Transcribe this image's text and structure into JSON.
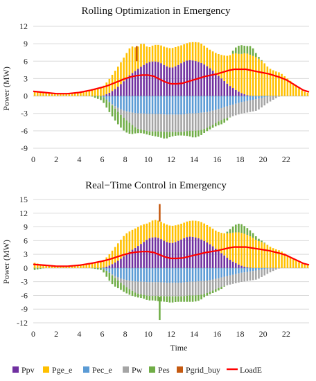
{
  "colors": {
    "Ppv": "#7030a0",
    "Pge_e": "#ffc000",
    "Pec_e": "#5b9bd5",
    "Pw": "#a5a5a5",
    "Pes": "#70ad47",
    "Pgrid_buy": "#c55a11",
    "LoadE": "#ff0000"
  },
  "legend": [
    {
      "key": "Ppv",
      "label": "Ppv",
      "kind": "box"
    },
    {
      "key": "Pge_e",
      "label": "Pge_e",
      "kind": "box"
    },
    {
      "key": "Pec_e",
      "label": "Pec_e",
      "kind": "box"
    },
    {
      "key": "Pw",
      "label": "Pw",
      "kind": "box"
    },
    {
      "key": "Pes",
      "label": "Pes",
      "kind": "box"
    },
    {
      "key": "Pgrid_buy",
      "label": "Pgrid_buy",
      "kind": "box"
    },
    {
      "key": "LoadE",
      "label": "LoadE",
      "kind": "line"
    }
  ],
  "chart_data": [
    {
      "type": "bar",
      "title": "Rolling Optimization in Emergency",
      "xlabel": "",
      "ylabel": "Power (MW)",
      "ylim": [
        -9,
        12
      ],
      "yticks": [
        -9,
        -6,
        -3,
        0,
        3,
        6,
        9,
        12
      ],
      "xlim": [
        0,
        24
      ],
      "xticks": [
        0,
        2,
        4,
        6,
        8,
        10,
        12,
        14,
        16,
        18,
        20,
        22
      ],
      "grid": true,
      "stacked": true,
      "step_hours": 0.25,
      "time_samples": [
        0,
        1,
        2,
        3,
        4,
        5,
        6,
        6.5,
        7,
        7.5,
        8,
        8.5,
        9,
        9.5,
        10,
        10.5,
        11,
        11.5,
        12,
        12.5,
        13,
        13.5,
        14,
        14.5,
        15,
        15.5,
        16,
        16.5,
        17,
        17.5,
        18,
        18.5,
        19,
        19.5,
        20,
        20.5,
        21,
        21.5,
        22,
        22.5,
        23,
        23.5,
        24
      ],
      "series": [
        {
          "name": "Ppv",
          "values": [
            0,
            0,
            0,
            0,
            0,
            0,
            0,
            0.4,
            1.0,
            1.8,
            2.8,
            3.8,
            4.5,
            5.2,
            5.8,
            6.0,
            5.8,
            5.2,
            4.8,
            5.2,
            5.8,
            6.2,
            6.1,
            5.8,
            5.3,
            4.6,
            3.7,
            2.8,
            1.9,
            1.2,
            0.6,
            0.2,
            0,
            0,
            0,
            0,
            0,
            0,
            0,
            0,
            0,
            0,
            0
          ]
        },
        {
          "name": "Pge_e",
          "values": [
            0.8,
            0.6,
            0.4,
            0.4,
            0.6,
            1.0,
            1.5,
            2.2,
            3.0,
            3.6,
            4.2,
            4.8,
            3.8,
            4.0,
            2.5,
            2.8,
            3.0,
            3.2,
            3.4,
            3.3,
            3.0,
            3.0,
            3.2,
            3.4,
            3.2,
            3.2,
            3.6,
            4.2,
            5.0,
            6.2,
            6.6,
            7.2,
            7.0,
            6.6,
            5.9,
            4.8,
            4.3,
            4.0,
            3.2,
            2.4,
            1.5,
            0.8,
            0.5
          ]
        },
        {
          "name": "Pec_e",
          "values": [
            0,
            0,
            0,
            0,
            0,
            0,
            0,
            -0.8,
            -1.6,
            -2.2,
            -2.6,
            -2.8,
            -3.0,
            -3.0,
            -3.1,
            -3.1,
            -3.1,
            -3.2,
            -3.2,
            -3.2,
            -3.2,
            -3.0,
            -3.0,
            -2.9,
            -2.8,
            -2.6,
            -2.3,
            -2.0,
            -1.7,
            -1.4,
            -1.1,
            -0.9,
            -0.7,
            -0.5,
            -0.3,
            -0.1,
            0,
            0,
            0,
            0,
            0,
            0,
            0
          ]
        },
        {
          "name": "Pw",
          "values": [
            0,
            0,
            0,
            0,
            0,
            0,
            0,
            0,
            -0.3,
            -0.8,
            -1.4,
            -2.0,
            -2.6,
            -2.8,
            -3.0,
            -3.0,
            -3.0,
            -3.0,
            -3.0,
            -3.0,
            -3.0,
            -3.0,
            -3.0,
            -3.0,
            -2.8,
            -2.5,
            -2.2,
            -2.0,
            -2.0,
            -2.0,
            -2.0,
            -2.0,
            -2.0,
            -2.0,
            -1.5,
            -1.0,
            -0.5,
            0,
            0,
            0,
            0,
            0,
            0
          ]
        },
        {
          "name": "Pes",
          "values": [
            0,
            0,
            0,
            0,
            0,
            0,
            -0.8,
            -1.6,
            -2.0,
            -2.2,
            -2.2,
            -1.8,
            -0.8,
            -0.6,
            -0.6,
            -0.8,
            -1.0,
            -1.2,
            -0.8,
            -0.6,
            -0.6,
            -0.9,
            -1.2,
            -1.0,
            -0.6,
            -0.5,
            -0.6,
            -0.8,
            -0.3,
            0.8,
            1.6,
            1.2,
            1.6,
            0.4,
            0,
            0,
            0,
            0,
            0,
            0,
            0,
            0,
            0
          ]
        },
        {
          "name": "Pgrid_buy",
          "values": [
            0,
            0,
            0,
            0,
            0,
            0,
            0,
            0,
            0,
            0,
            0,
            0,
            0,
            0,
            0,
            0,
            0,
            0,
            0,
            0,
            0,
            0,
            0,
            0,
            0,
            0,
            0,
            0,
            0,
            0,
            0,
            0,
            0,
            0,
            0,
            0,
            0,
            0,
            0,
            0,
            0,
            0,
            0
          ]
        },
        {
          "name": "LoadE",
          "values": [
            0.8,
            0.6,
            0.4,
            0.4,
            0.6,
            1.0,
            1.5,
            1.8,
            2.2,
            2.6,
            3.0,
            3.3,
            3.5,
            3.6,
            3.6,
            3.4,
            2.9,
            2.4,
            2.1,
            2.1,
            2.2,
            2.5,
            2.8,
            3.1,
            3.4,
            3.6,
            3.8,
            4.1,
            4.4,
            4.6,
            4.6,
            4.6,
            4.4,
            4.2,
            4.0,
            3.8,
            3.5,
            3.2,
            2.8,
            2.2,
            1.6,
            1.0,
            0.7
          ]
        }
      ],
      "spikes": [
        {
          "series": "Pgrid_buy",
          "t": 9.0,
          "base": 6.0,
          "value": 2.6
        }
      ]
    },
    {
      "type": "bar",
      "title": "Real−Time Control in Emergency",
      "xlabel": "Time",
      "ylabel": "Power (MW)",
      "ylim": [
        -12,
        15
      ],
      "yticks": [
        -12,
        -9,
        -6,
        -3,
        0,
        3,
        6,
        9,
        12,
        15
      ],
      "xlim": [
        0,
        24
      ],
      "xticks": [
        0,
        2,
        4,
        6,
        8,
        10,
        12,
        14,
        16,
        18,
        20,
        22
      ],
      "grid": true,
      "stacked": true,
      "step_hours": 0.25,
      "time_samples": [
        0,
        1,
        2,
        3,
        4,
        5,
        6,
        6.5,
        7,
        7.5,
        8,
        8.5,
        9,
        9.5,
        10,
        10.5,
        11,
        11.5,
        12,
        12.5,
        13,
        13.5,
        14,
        14.5,
        15,
        15.5,
        16,
        16.5,
        17,
        17.5,
        18,
        18.5,
        19,
        19.5,
        20,
        20.5,
        21,
        21.5,
        22,
        22.5,
        23,
        23.5,
        24
      ],
      "series": [
        {
          "name": "Ppv",
          "values": [
            0,
            0,
            0,
            0,
            0,
            0,
            0,
            0.4,
            1.0,
            1.8,
            2.8,
            3.8,
            4.6,
            5.5,
            6.4,
            6.8,
            6.5,
            5.8,
            5.4,
            5.8,
            6.4,
            6.9,
            6.8,
            6.4,
            5.8,
            5.0,
            4.0,
            3.0,
            2.0,
            1.2,
            0.6,
            0.2,
            0,
            0,
            0,
            0,
            0,
            0,
            0,
            0,
            0,
            0,
            0
          ]
        },
        {
          "name": "Pge_e",
          "values": [
            1.2,
            0.6,
            0.4,
            0.4,
            0.6,
            1.0,
            1.5,
            2.2,
            3.2,
            4.0,
            4.6,
            4.4,
            4.2,
            4.0,
            3.4,
            3.8,
            3.8,
            3.8,
            3.8,
            3.6,
            3.4,
            3.4,
            3.6,
            3.8,
            3.8,
            3.8,
            4.0,
            4.6,
            5.6,
            6.6,
            7.2,
            7.2,
            6.8,
            6.0,
            5.6,
            4.8,
            4.2,
            3.8,
            3.0,
            2.2,
            1.4,
            0.8,
            0.6
          ]
        },
        {
          "name": "Pec_e",
          "values": [
            0,
            0,
            0,
            0,
            0,
            0,
            0,
            -0.8,
            -1.6,
            -2.2,
            -2.6,
            -2.8,
            -3.0,
            -3.0,
            -3.1,
            -3.1,
            -3.1,
            -3.2,
            -3.2,
            -3.2,
            -3.2,
            -3.0,
            -3.0,
            -2.9,
            -2.8,
            -2.6,
            -2.3,
            -2.0,
            -1.7,
            -1.4,
            -1.1,
            -0.9,
            -0.7,
            -0.5,
            -0.3,
            -0.1,
            0,
            0,
            0,
            0,
            0,
            0,
            0
          ]
        },
        {
          "name": "Pw",
          "values": [
            0,
            0,
            0,
            0,
            0,
            0,
            0,
            0,
            -0.3,
            -0.8,
            -1.4,
            -2.0,
            -2.6,
            -2.8,
            -3.0,
            -3.0,
            -3.0,
            -3.0,
            -3.0,
            -3.0,
            -3.0,
            -3.0,
            -3.0,
            -3.0,
            -2.8,
            -2.5,
            -2.2,
            -2.0,
            -2.0,
            -2.0,
            -2.0,
            -2.0,
            -2.0,
            -2.0,
            -1.5,
            -1.0,
            -0.5,
            0,
            0,
            0,
            0,
            0,
            0
          ]
        },
        {
          "name": "Pes",
          "values": [
            -0.5,
            0,
            0,
            0,
            0,
            0,
            -0.5,
            -1.6,
            -2.0,
            -1.6,
            -1.4,
            -1.2,
            -0.8,
            -0.8,
            -1.0,
            -1.0,
            -1.2,
            -1.2,
            -1.4,
            -1.2,
            -1.2,
            -1.4,
            -1.4,
            -1.2,
            -0.6,
            -0.5,
            -0.6,
            -0.4,
            0.6,
            1.6,
            2.0,
            1.6,
            1.2,
            0.6,
            0.2,
            0,
            0,
            0,
            0,
            0,
            0,
            0,
            0
          ]
        },
        {
          "name": "Pgrid_buy",
          "values": [
            0,
            0,
            0,
            0,
            0,
            0,
            0,
            0,
            0,
            0,
            0,
            0,
            0,
            0,
            0,
            0,
            0,
            0,
            0,
            0,
            0,
            0,
            0,
            0,
            0,
            0,
            0,
            0,
            0,
            0,
            0,
            0,
            0,
            0,
            0,
            0,
            0,
            0,
            0,
            0,
            0,
            0,
            0
          ]
        },
        {
          "name": "LoadE",
          "values": [
            0.8,
            0.6,
            0.4,
            0.4,
            0.6,
            1.0,
            1.5,
            1.8,
            2.2,
            2.6,
            3.0,
            3.3,
            3.5,
            3.6,
            3.6,
            3.4,
            2.9,
            2.4,
            2.1,
            2.1,
            2.2,
            2.5,
            2.8,
            3.1,
            3.4,
            3.6,
            3.8,
            4.1,
            4.4,
            4.6,
            4.6,
            4.6,
            4.4,
            4.2,
            4.0,
            3.8,
            3.5,
            3.2,
            2.8,
            2.2,
            1.6,
            1.0,
            0.7
          ]
        }
      ],
      "spikes": [
        {
          "series": "Pgrid_buy",
          "t": 11.0,
          "base": 10.2,
          "value": 3.8
        },
        {
          "series": "Pes",
          "t": 11.0,
          "base": -6.4,
          "value": -5.0
        }
      ]
    }
  ]
}
